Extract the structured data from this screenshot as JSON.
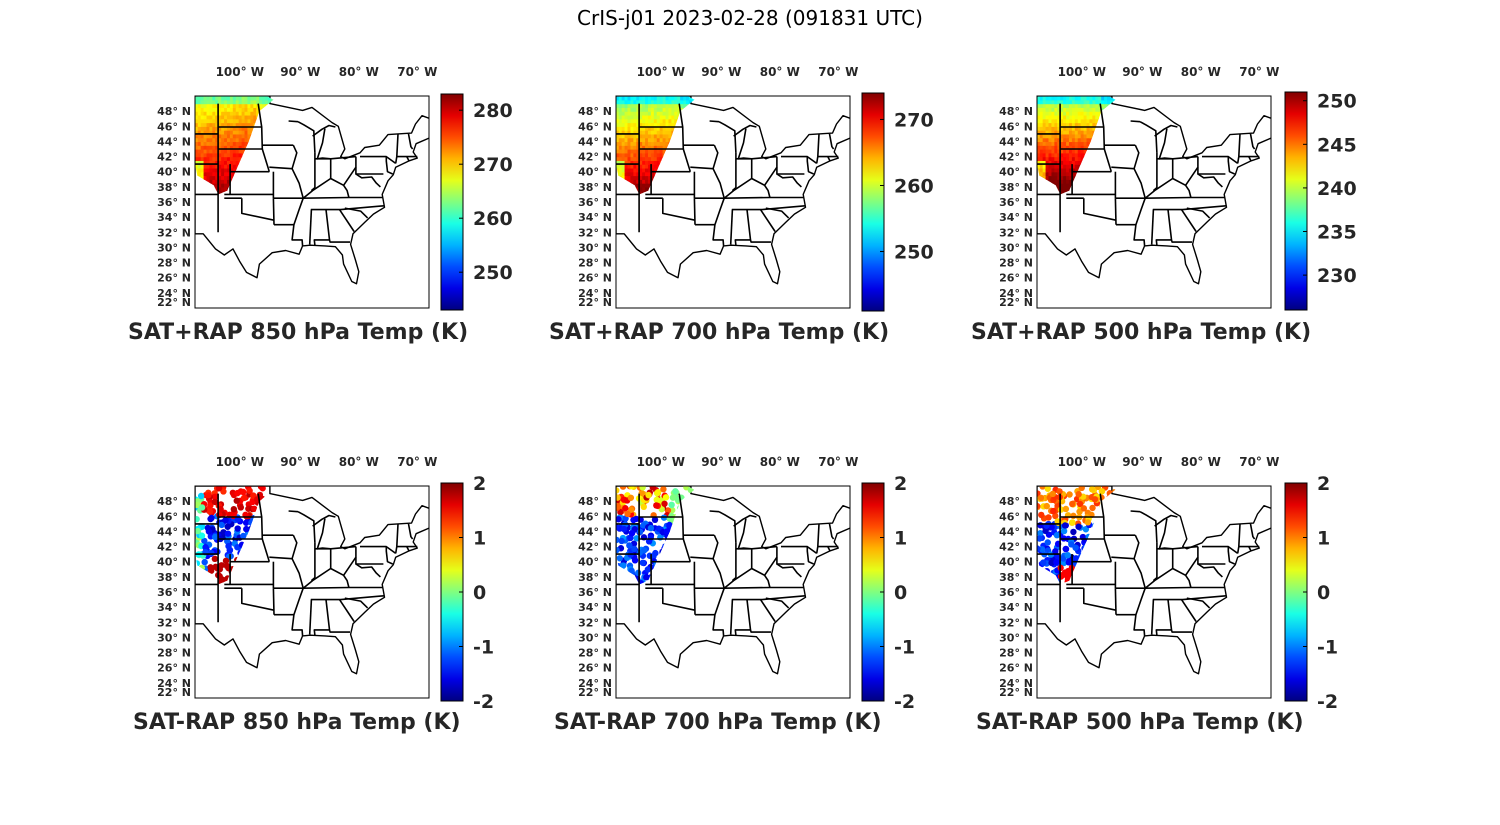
{
  "title": "CrIS-j01 2023-02-28 (091831 UTC)",
  "map_axes": {
    "lon_ticks": [
      "100° W",
      "90° W",
      "80° W",
      "70° W"
    ],
    "lat_ticks": [
      "48° N",
      "46° N",
      "44° N",
      "42° N",
      "40° N",
      "38° N",
      "36° N",
      "34° N",
      "32° N",
      "30° N",
      "28° N",
      "26° N",
      "24° N",
      "22° N"
    ],
    "lon_range": [
      -108,
      -68
    ],
    "lat_range": [
      22,
      50
    ]
  },
  "colormap": "jet",
  "land_color": "#ffffff",
  "border_color": "#000000",
  "panels": [
    {
      "title": "SAT+RAP 850 hPa Temp (K)",
      "kind": "temperature",
      "colorbar_ticks": [
        "280",
        "270",
        "260",
        "250"
      ],
      "colorbar_values": [
        280,
        270,
        260,
        250
      ],
      "colorbar_range": [
        243,
        283
      ]
    },
    {
      "title": "SAT+RAP 700 hPa Temp (K)",
      "kind": "temperature",
      "colorbar_ticks": [
        "270",
        "260",
        "250"
      ],
      "colorbar_values": [
        270,
        260,
        250
      ],
      "colorbar_range": [
        241,
        274
      ]
    },
    {
      "title": "SAT+RAP 500 hPa Temp (K)",
      "kind": "temperature",
      "colorbar_ticks": [
        "250",
        "245",
        "240",
        "235",
        "230"
      ],
      "colorbar_values": [
        250,
        245,
        240,
        235,
        230
      ],
      "colorbar_range": [
        226,
        251
      ]
    },
    {
      "title": "SAT-RAP 850 hPa Temp (K)",
      "kind": "difference",
      "colorbar_ticks": [
        "2",
        "1",
        "0",
        "-1",
        "-2"
      ],
      "colorbar_values": [
        2,
        1,
        0,
        -1,
        -2
      ],
      "colorbar_range": [
        -2,
        2
      ]
    },
    {
      "title": "SAT-RAP 700 hPa Temp (K)",
      "kind": "difference",
      "colorbar_ticks": [
        "2",
        "1",
        "0",
        "-1",
        "-2"
      ],
      "colorbar_values": [
        2,
        1,
        0,
        -1,
        -2
      ],
      "colorbar_range": [
        -2,
        2
      ]
    },
    {
      "title": "SAT-RAP 500 hPa Temp (K)",
      "kind": "difference",
      "colorbar_ticks": [
        "2",
        "1",
        "0",
        "-1",
        "-2"
      ],
      "colorbar_values": [
        2,
        1,
        0,
        -1,
        -2
      ],
      "colorbar_range": [
        -2,
        2
      ]
    }
  ]
}
